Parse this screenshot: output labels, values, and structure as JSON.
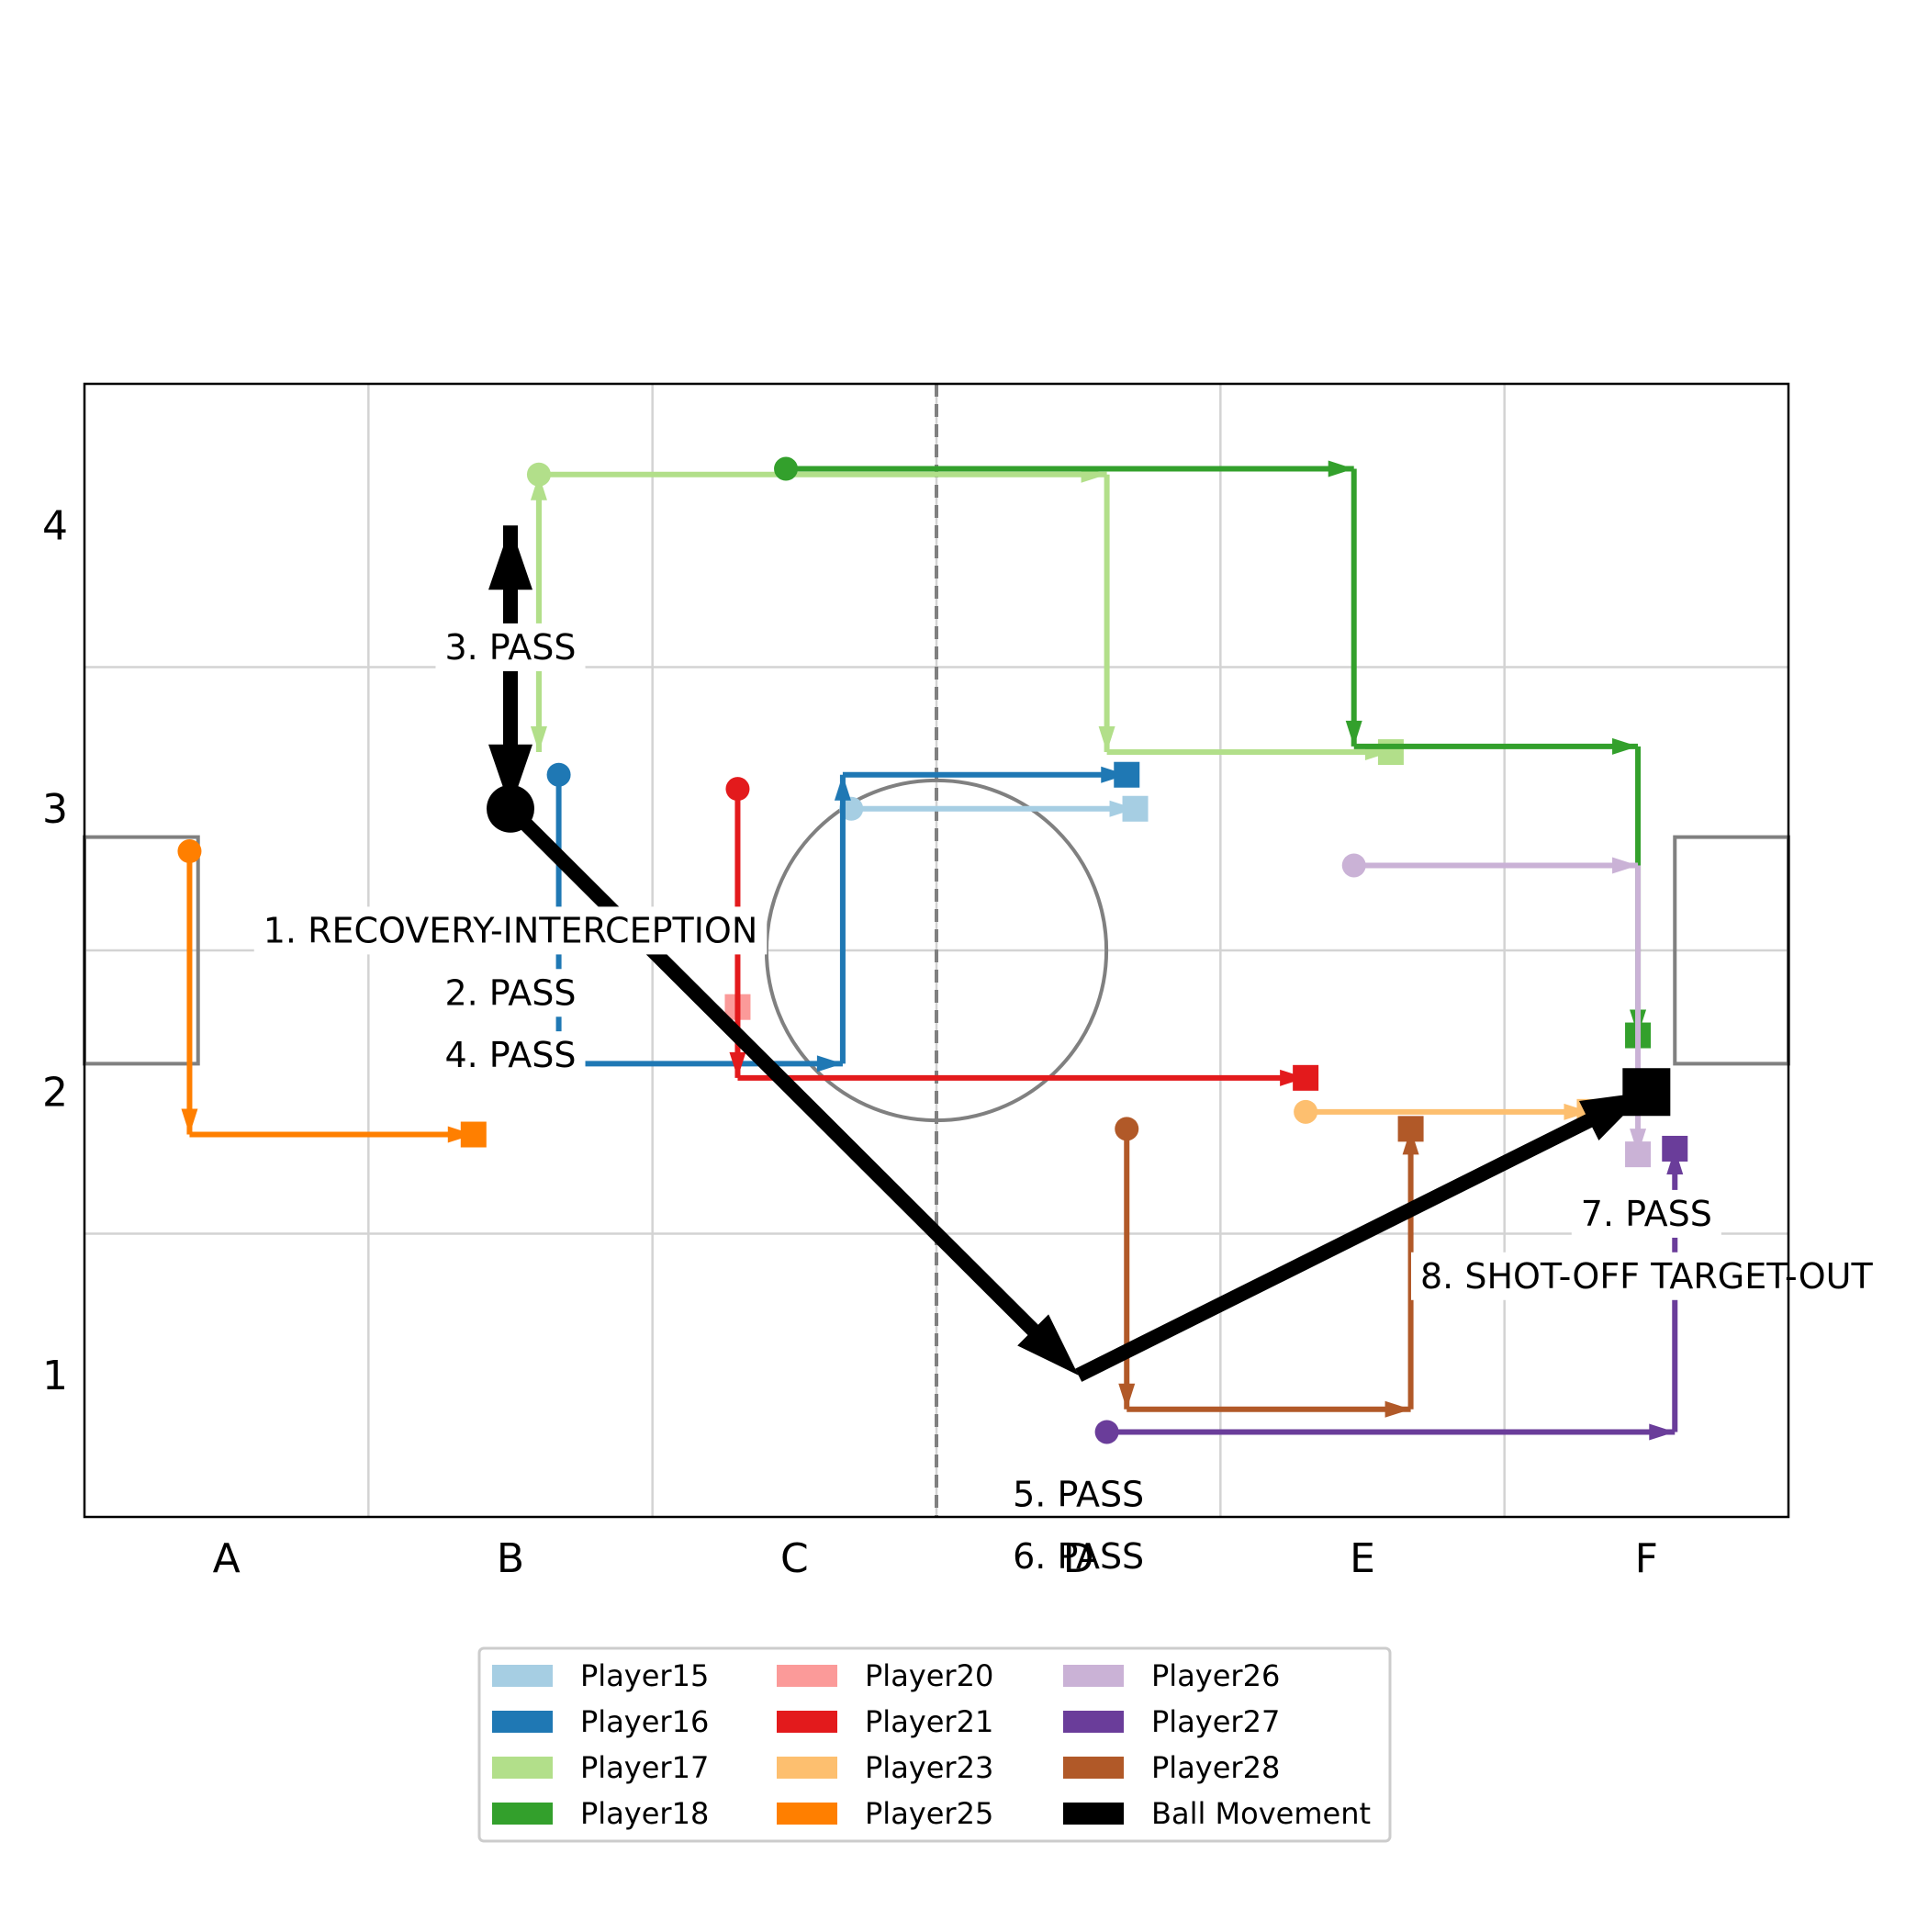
{
  "chart_data": {
    "type": "diagram",
    "x_ticks": [
      {
        "label": "A",
        "value": 0.5
      },
      {
        "label": "B",
        "value": 1.5
      },
      {
        "label": "C",
        "value": 2.5
      },
      {
        "label": "D",
        "value": 3.5
      },
      {
        "label": "E",
        "value": 4.5
      },
      {
        "label": "F",
        "value": 5.5
      }
    ],
    "y_ticks": [
      {
        "label": "1",
        "value": 1
      },
      {
        "label": "2",
        "value": 2
      },
      {
        "label": "3",
        "value": 3
      },
      {
        "label": "4",
        "value": 4
      }
    ],
    "xlim": [
      0,
      6
    ],
    "ylim": [
      0.5,
      4.5
    ],
    "grid": true,
    "field": {
      "halfway_x": 3.0,
      "center": [
        3.0,
        2.5
      ],
      "circle_radius": 0.6,
      "left_box": {
        "x0": 0.0,
        "x1": 0.4,
        "y0": 2.1,
        "y1": 2.9
      },
      "right_box": {
        "x0": 5.6,
        "x1": 6.0,
        "y0": 2.1,
        "y1": 2.9
      },
      "line_color": "#808080"
    },
    "players": [
      {
        "name": "Player15",
        "color": "#a6cee3",
        "start": [
          2.7,
          3.0
        ],
        "path": [
          [
            2.7,
            3.0
          ],
          [
            3.7,
            3.0
          ]
        ]
      },
      {
        "name": "Player16",
        "color": "#1f78b4",
        "start": [
          1.67,
          3.12
        ],
        "path": [
          [
            1.67,
            3.12
          ],
          [
            1.67,
            2.1
          ],
          [
            2.67,
            2.1
          ],
          [
            2.67,
            3.12
          ],
          [
            3.67,
            3.12
          ]
        ]
      },
      {
        "name": "Player17",
        "color": "#b2df8a",
        "start": [
          1.6,
          4.18
        ],
        "path": [
          [
            1.6,
            4.18
          ],
          [
            1.6,
            3.2
          ],
          [
            1.6,
            4.18
          ],
          [
            3.6,
            4.18
          ],
          [
            3.6,
            3.2
          ],
          [
            4.6,
            3.2
          ]
        ]
      },
      {
        "name": "Player18",
        "color": "#33a02c",
        "start": [
          2.47,
          4.2
        ],
        "path": [
          [
            2.47,
            4.2
          ],
          [
            4.47,
            4.2
          ],
          [
            4.47,
            3.22
          ],
          [
            5.47,
            3.22
          ],
          [
            5.47,
            2.2
          ]
        ]
      },
      {
        "name": "Player20",
        "color": "#fb9a99",
        "start": null,
        "path": [
          [
            2.3,
            2.3
          ]
        ]
      },
      {
        "name": "Player21",
        "color": "#e31a1c",
        "start": [
          2.3,
          3.07
        ],
        "path": [
          [
            2.3,
            3.07
          ],
          [
            2.3,
            2.05
          ],
          [
            4.3,
            2.05
          ]
        ]
      },
      {
        "name": "Player23",
        "color": "#fdbf6f",
        "start": [
          4.3,
          1.93
        ],
        "path": [
          [
            4.3,
            1.93
          ],
          [
            5.3,
            1.93
          ]
        ]
      },
      {
        "name": "Player25",
        "color": "#ff7f00",
        "start": [
          0.37,
          2.85
        ],
        "path": [
          [
            0.37,
            2.85
          ],
          [
            0.37,
            1.85
          ],
          [
            1.37,
            1.85
          ]
        ]
      },
      {
        "name": "Player26",
        "color": "#cab2d6",
        "start": [
          4.47,
          2.8
        ],
        "path": [
          [
            4.47,
            2.8
          ],
          [
            5.47,
            2.8
          ],
          [
            5.47,
            1.78
          ]
        ]
      },
      {
        "name": "Player27",
        "color": "#6a3d9a",
        "start": [
          3.6,
          0.8
        ],
        "path": [
          [
            3.6,
            0.8
          ],
          [
            5.6,
            0.8
          ],
          [
            5.6,
            1.8
          ]
        ]
      },
      {
        "name": "Player28",
        "color": "#b15928",
        "start": [
          3.67,
          1.87
        ],
        "path": [
          [
            3.67,
            1.87
          ],
          [
            3.67,
            0.88
          ],
          [
            4.67,
            0.88
          ],
          [
            4.67,
            1.87
          ]
        ]
      }
    ],
    "ball": {
      "name": "Ball Movement",
      "color": "#000000",
      "path": [
        [
          1.5,
          3.0
        ],
        [
          1.5,
          4.0
        ],
        [
          1.5,
          3.0
        ],
        [
          3.5,
          1.0
        ],
        [
          5.5,
          2.0
        ]
      ]
    },
    "events": [
      {
        "label": "1. RECOVERY-INTERCEPTION",
        "x": 1.5,
        "y": 2.57
      },
      {
        "label": "2. PASS",
        "x": 1.5,
        "y": 2.35
      },
      {
        "label": "3. PASS",
        "x": 1.5,
        "y": 3.57
      },
      {
        "label": "4. PASS",
        "x": 1.5,
        "y": 2.13
      },
      {
        "label": "5. PASS",
        "x": 3.5,
        "y": 0.58
      },
      {
        "label": "6. PASS",
        "x": 3.5,
        "y": 0.36
      },
      {
        "label": "7. PASS",
        "x": 5.5,
        "y": 1.57
      },
      {
        "label": "8. SHOT-OFF TARGET-OUT",
        "x": 5.5,
        "y": 1.35
      }
    ],
    "legend": {
      "placement": "lower-center",
      "columns": [
        [
          "Player15",
          "Player16",
          "Player17",
          "Player18"
        ],
        [
          "Player20",
          "Player21",
          "Player23",
          "Player25"
        ],
        [
          "Player26",
          "Player27",
          "Player28",
          "Ball Movement"
        ]
      ]
    }
  }
}
